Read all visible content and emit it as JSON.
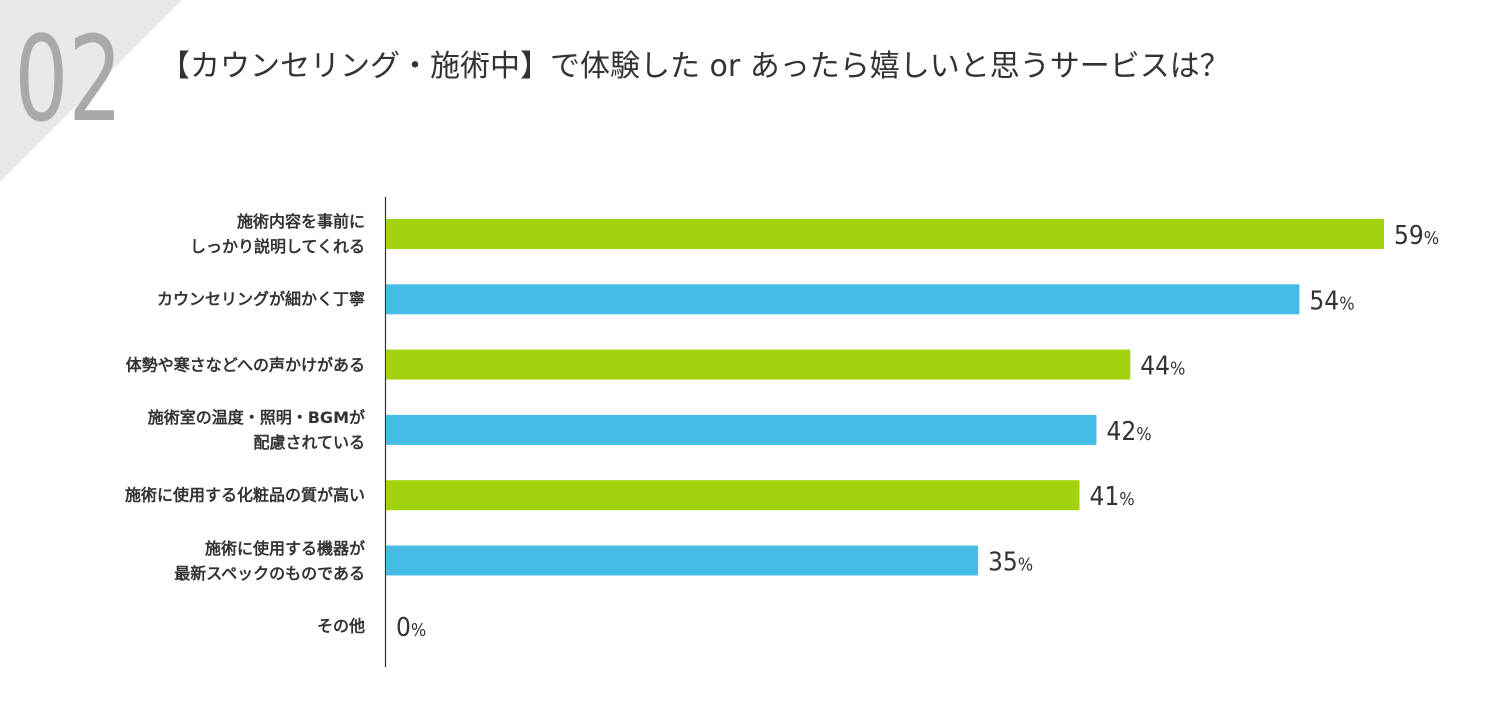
{
  "section_number": "02",
  "chart_data": {
    "type": "hbar",
    "title": "【カウンセリング・施術中】で体験した or あったら嬉しいと思うサービスは？",
    "categories": [
      "施術内容を事前に\nしっかり説明してくれる",
      "カウンセリングが細かく丁寧",
      "体勢や寒さなどへの声かけがある",
      "施術室の温度・照明・BGMが\n配慮されている",
      "施術に使用する化粧品の質が高い",
      "施術に使用する機器が\n最新スペックのものである",
      "その他"
    ],
    "values": [
      59,
      54,
      44,
      42,
      41,
      35,
      0
    ],
    "value_labels": [
      "59%",
      "54%",
      "44%",
      "42%",
      "41%",
      "35%",
      "0%"
    ],
    "colors": [
      "#a3d20f",
      "#45bce5",
      "#a3d20f",
      "#45bce5",
      "#a3d20f",
      "#45bce5",
      "#a3d20f"
    ],
    "xlim": [
      0,
      59
    ]
  }
}
